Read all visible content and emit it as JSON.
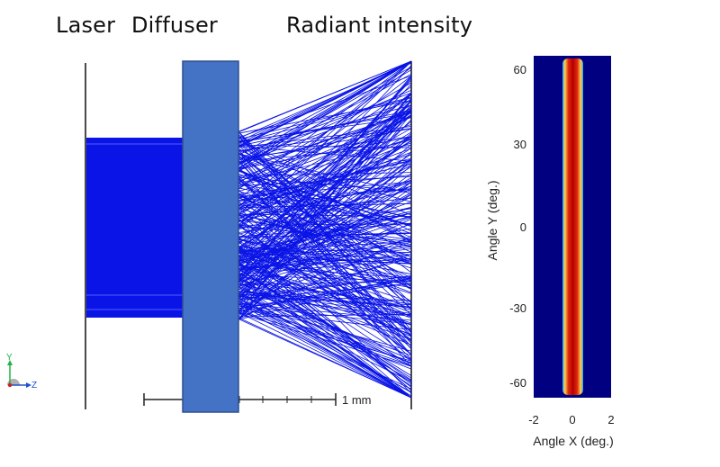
{
  "headers": {
    "laser": "Laser",
    "diffuser": "Diffuser",
    "radiant": "Radiant intensity"
  },
  "scale_bar": {
    "label": "1 mm"
  },
  "axis_triad": {
    "y_label": "Y",
    "z_label": "Z"
  },
  "intensity_map": {
    "x_label": "Angle X (deg.)",
    "y_label": "Angle Y (deg.)",
    "x_ticks": [
      "-2",
      "0",
      "2"
    ],
    "y_ticks": [
      "60",
      "30",
      "0",
      "-30",
      "-60"
    ]
  },
  "colors": {
    "rays": "#0a14e6",
    "diffuser_fill": "#4472c4",
    "diffuser_edge": "#2f4f8f",
    "map_background": "#000080",
    "stripe_core": "#b30000"
  }
}
